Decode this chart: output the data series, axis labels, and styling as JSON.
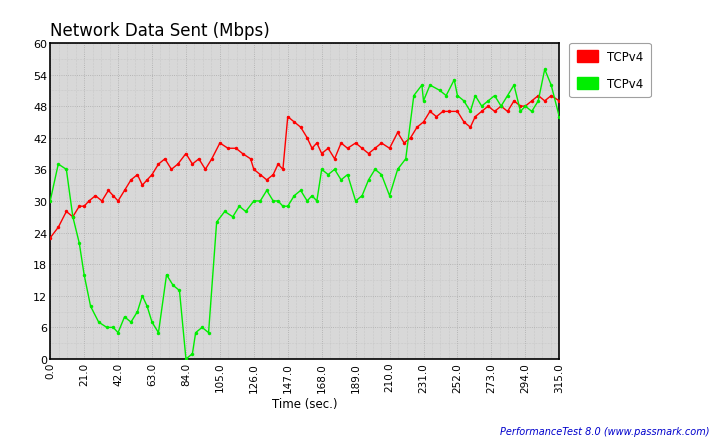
{
  "title": "Network Data Sent (Mbps)",
  "xlabel": "Time (sec.)",
  "xlim": [
    0,
    315
  ],
  "ylim": [
    0,
    60
  ],
  "xticks": [
    0.0,
    21.0,
    42.0,
    63.0,
    84.0,
    105.0,
    126.0,
    147.0,
    168.0,
    189.0,
    210.0,
    231.0,
    252.0,
    273.0,
    294.0,
    315.0
  ],
  "yticks": [
    0,
    6,
    12,
    18,
    24,
    30,
    36,
    42,
    48,
    54,
    60
  ],
  "fig_bg": "#ffffff",
  "plot_bg": "#d8d8d8",
  "legend_labels": [
    "TCPv4",
    "TCPv4"
  ],
  "legend_colors": [
    "#ff0000",
    "#00ee00"
  ],
  "watermark": "PerformanceTest 8.0 (www.passmark.com)",
  "red_x": [
    0,
    5,
    10,
    14,
    18,
    21,
    24,
    28,
    32,
    36,
    39,
    42,
    46,
    50,
    54,
    57,
    60,
    63,
    67,
    71,
    75,
    79,
    84,
    88,
    92,
    96,
    100,
    105,
    110,
    115,
    119,
    124,
    126,
    130,
    134,
    138,
    141,
    144,
    147,
    151,
    155,
    159,
    162,
    165,
    168,
    172,
    176,
    180,
    184,
    189,
    193,
    197,
    201,
    205,
    210,
    215,
    219,
    223,
    227,
    231,
    235,
    239,
    243,
    247,
    252,
    256,
    260,
    263,
    267,
    271,
    275,
    279,
    283,
    287,
    291,
    294,
    298,
    302,
    306,
    310,
    315
  ],
  "red_y": [
    23,
    25,
    28,
    27,
    29,
    29,
    30,
    31,
    30,
    32,
    31,
    30,
    32,
    34,
    35,
    33,
    34,
    35,
    37,
    38,
    36,
    37,
    39,
    37,
    38,
    36,
    38,
    41,
    40,
    40,
    39,
    38,
    36,
    35,
    34,
    35,
    37,
    36,
    46,
    45,
    44,
    42,
    40,
    41,
    39,
    40,
    38,
    41,
    40,
    41,
    40,
    39,
    40,
    41,
    40,
    43,
    41,
    42,
    44,
    45,
    47,
    46,
    47,
    47,
    47,
    45,
    44,
    46,
    47,
    48,
    47,
    48,
    47,
    49,
    48,
    48,
    49,
    50,
    49,
    50,
    49
  ],
  "green_x": [
    0,
    5,
    10,
    14,
    18,
    21,
    25,
    30,
    35,
    39,
    42,
    46,
    50,
    54,
    57,
    60,
    63,
    67,
    72,
    76,
    80,
    84,
    88,
    90,
    94,
    98,
    103,
    108,
    113,
    117,
    121,
    126,
    130,
    134,
    138,
    141,
    144,
    147,
    151,
    155,
    159,
    162,
    165,
    168,
    172,
    176,
    180,
    184,
    189,
    193,
    197,
    201,
    205,
    210,
    215,
    220,
    225,
    230,
    231,
    235,
    241,
    245,
    250,
    252,
    256,
    260,
    263,
    267,
    271,
    275,
    279,
    283,
    287,
    291,
    294,
    298,
    302,
    306,
    310,
    315
  ],
  "green_y": [
    30,
    37,
    36,
    27,
    22,
    16,
    10,
    7,
    6,
    6,
    5,
    8,
    7,
    9,
    12,
    10,
    7,
    5,
    16,
    14,
    13,
    0,
    1,
    5,
    6,
    5,
    26,
    28,
    27,
    29,
    28,
    30,
    30,
    32,
    30,
    30,
    29,
    29,
    31,
    32,
    30,
    31,
    30,
    36,
    35,
    36,
    34,
    35,
    30,
    31,
    34,
    36,
    35,
    31,
    36,
    38,
    50,
    52,
    49,
    52,
    51,
    50,
    53,
    50,
    49,
    47,
    50,
    48,
    49,
    50,
    48,
    50,
    52,
    47,
    48,
    47,
    49,
    55,
    52,
    46
  ]
}
